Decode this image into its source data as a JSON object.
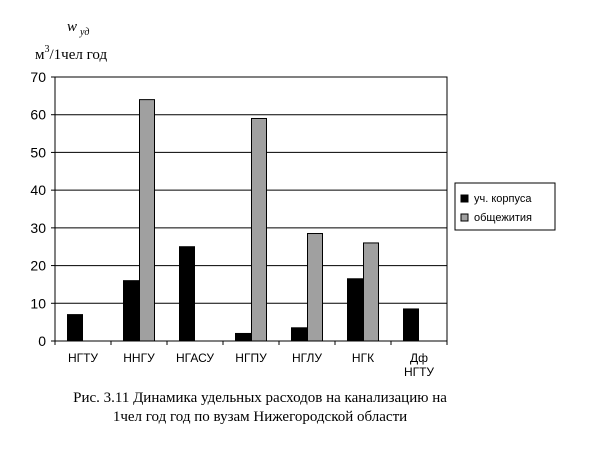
{
  "chart_data": {
    "type": "bar",
    "y_symbol": "w",
    "y_symbol_sub": "уд",
    "ylabel": "м3/1чел год",
    "ylabel_main": "м",
    "ylabel_sup": "3",
    "ylabel_rest": "/1чел год",
    "ylim": [
      0,
      70
    ],
    "yticks": [
      "0",
      "10",
      "20",
      "30",
      "40",
      "50",
      "60",
      "70"
    ],
    "grid": "horizontal",
    "legend_position": "right",
    "categories": [
      {
        "label_lines": [
          "НГТУ"
        ]
      },
      {
        "label_lines": [
          "ННГУ"
        ]
      },
      {
        "label_lines": [
          "НГАСУ"
        ]
      },
      {
        "label_lines": [
          "НГПУ"
        ]
      },
      {
        "label_lines": [
          "НГЛУ"
        ]
      },
      {
        "label_lines": [
          "НГК"
        ]
      },
      {
        "label_lines": [
          "Дф",
          "НГТУ"
        ]
      }
    ],
    "series": [
      {
        "name": "уч. корпуса",
        "color": "#000000",
        "values": [
          7,
          16,
          25,
          2,
          3.5,
          16.5,
          8.5
        ]
      },
      {
        "name": "общежития",
        "color": "#a0a0a0",
        "values": [
          0,
          64,
          0,
          59,
          28.5,
          26,
          0
        ]
      }
    ]
  },
  "caption": {
    "line1": "Рис. 3.11 Динамика удельных расходов на канализацию на",
    "line2": "1чел год год по вузам Нижегородской области"
  }
}
